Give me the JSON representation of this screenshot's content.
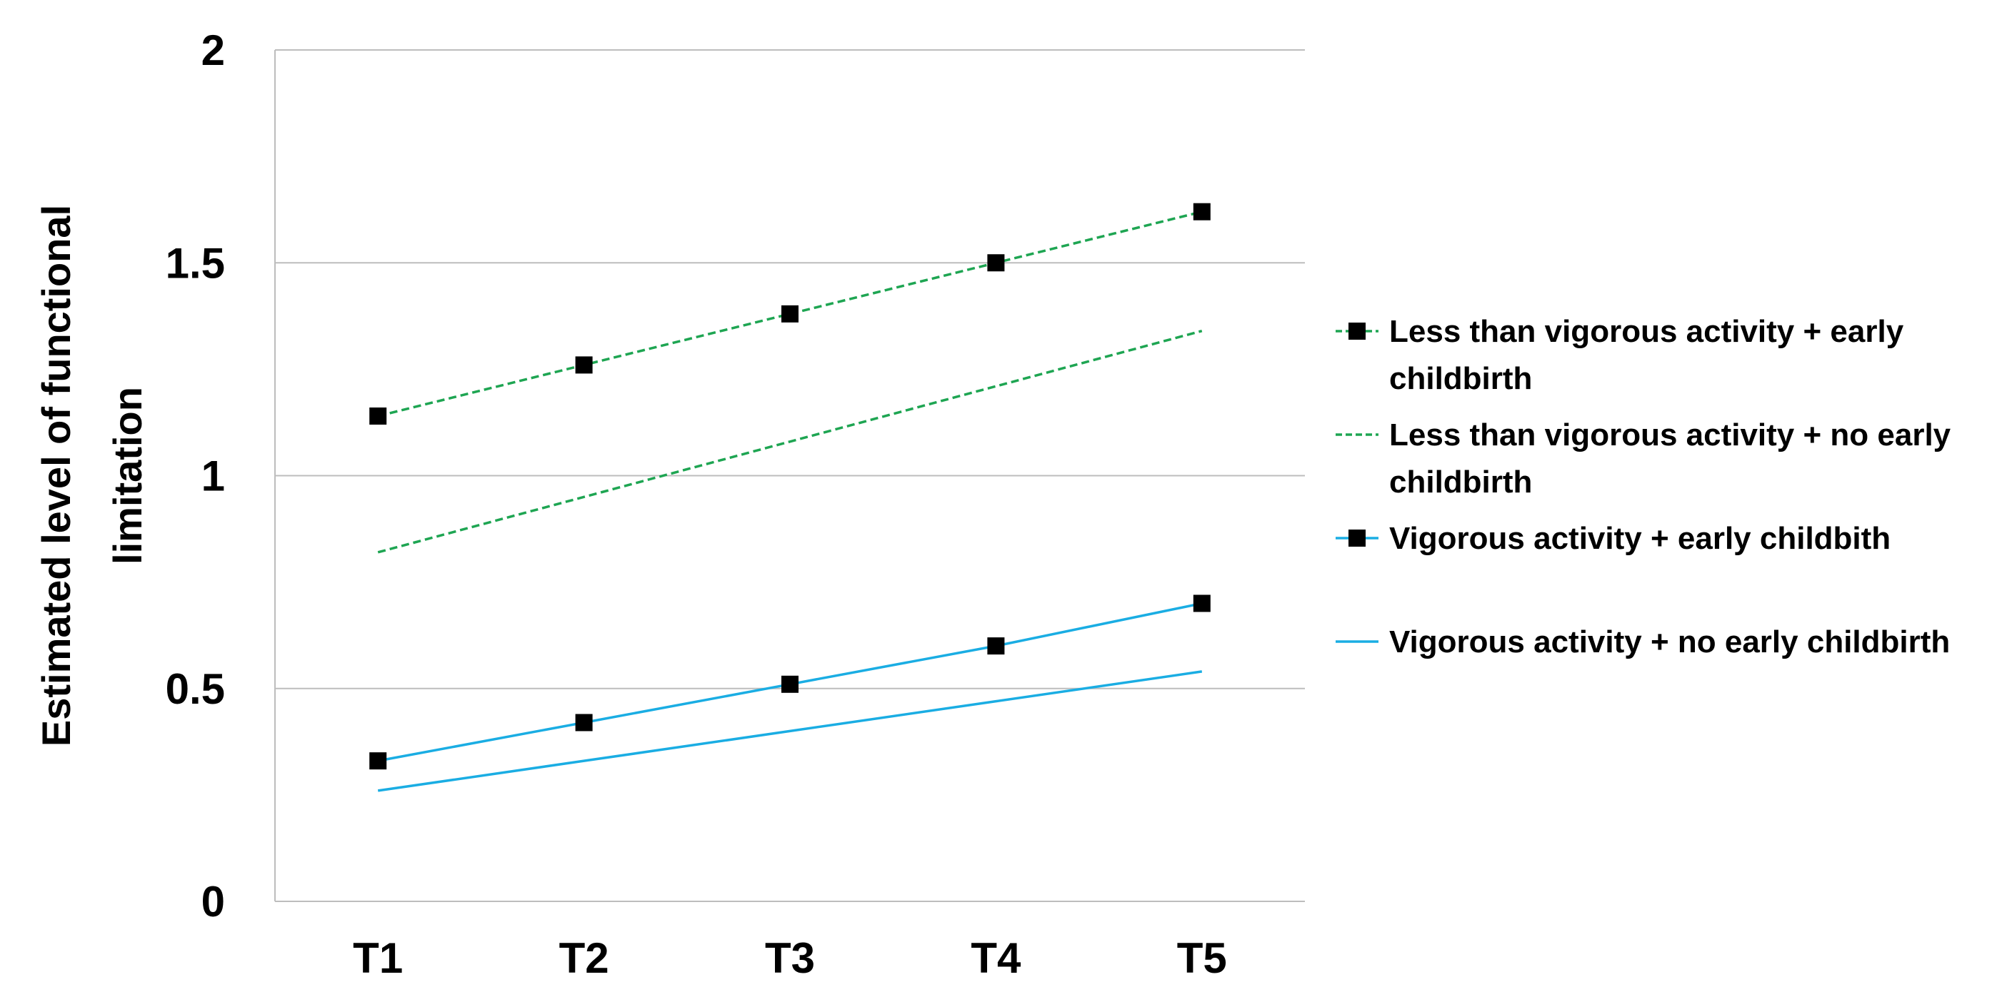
{
  "chart_data": {
    "type": "line",
    "title": "",
    "xlabel": "",
    "ylabel": [
      "Estimated level of functional",
      "limitation"
    ],
    "categories": [
      "T1",
      "T2",
      "T3",
      "T4",
      "T5"
    ],
    "ylim": [
      0,
      2
    ],
    "yticks": [
      "0",
      "0.5",
      "1",
      "1.5",
      "2"
    ],
    "grid": true,
    "legend_position": "right",
    "series": [
      {
        "name_lines": [
          "Less than vigorous activity + early",
          "childbirth"
        ],
        "name": "Less than vigorous activity + early childbirth",
        "values": [
          1.14,
          1.26,
          1.38,
          1.5,
          1.62
        ],
        "color": "#1EA552",
        "dashed": true,
        "markers": true
      },
      {
        "name_lines": [
          "Less than vigorous activity + no early",
          "childbirth"
        ],
        "name": "Less than vigorous activity + no early childbirth",
        "values": [
          0.82,
          0.95,
          1.08,
          1.21,
          1.34
        ],
        "color": "#1EA552",
        "dashed": true,
        "markers": false
      },
      {
        "name_lines": [
          "Vigorous activity + early childbith"
        ],
        "name": "Vigorous activity + early childbith",
        "values": [
          0.33,
          0.42,
          0.51,
          0.6,
          0.7
        ],
        "color": "#1AADE3",
        "dashed": false,
        "markers": true
      },
      {
        "name_lines": [
          "Vigorous activity + no early childbirth"
        ],
        "name": "Vigorous activity + no early childbirth",
        "values": [
          0.26,
          0.33,
          0.4,
          0.47,
          0.54
        ],
        "color": "#1AADE3",
        "dashed": false,
        "markers": false
      }
    ]
  }
}
